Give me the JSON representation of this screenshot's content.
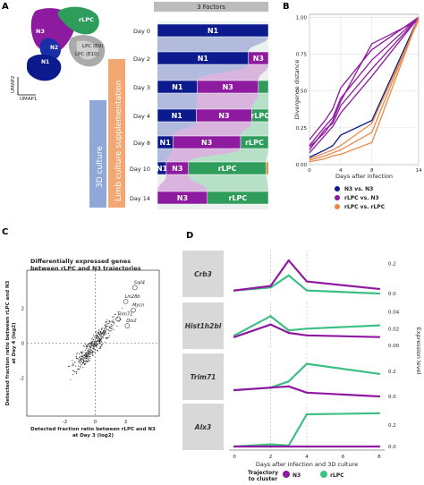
{
  "panels": {
    "a": "A",
    "b": "B",
    "c": "C",
    "d": "D"
  },
  "umap": {
    "clusters": [
      "N3",
      "rLPC",
      "N2",
      "N1",
      "LPC (E9)",
      "LPC (E10)"
    ],
    "axis_x": "UMAP1",
    "axis_y": "UMAP2"
  },
  "sankey": {
    "header": "3 Factors",
    "label_3d": "3D culture",
    "label_limb": "Limb culture supplementation",
    "days": [
      "Day 0",
      "Day 2",
      "Day 3",
      "Day 4",
      "Day 8",
      "Day 10",
      "Day 14"
    ],
    "bars": [
      [
        {
          "label": "N1",
          "frac": 1.0,
          "color": "#0b1a8c"
        }
      ],
      [
        {
          "label": "N1",
          "frac": 0.82,
          "color": "#0b1a8c"
        },
        {
          "label": "N3",
          "frac": 0.18,
          "color": "#8e1aa0"
        }
      ],
      [
        {
          "label": "N1",
          "frac": 0.36,
          "color": "#0b1a8c"
        },
        {
          "label": "N3",
          "frac": 0.55,
          "color": "#8e1aa0"
        },
        {
          "label": "",
          "frac": 0.09,
          "color": "#2e9c5a"
        }
      ],
      [
        {
          "label": "N1",
          "frac": 0.35,
          "color": "#0b1a8c"
        },
        {
          "label": "N3",
          "frac": 0.5,
          "color": "#8e1aa0"
        },
        {
          "label": "rLPC",
          "frac": 0.15,
          "color": "#2e9c5a"
        }
      ],
      [
        {
          "label": "N1",
          "frac": 0.14,
          "color": "#0b1a8c"
        },
        {
          "label": "N3",
          "frac": 0.61,
          "color": "#8e1aa0"
        },
        {
          "label": "rLPC",
          "frac": 0.25,
          "color": "#2e9c5a"
        }
      ],
      [
        {
          "label": "N1",
          "frac": 0.08,
          "color": "#0b1a8c"
        },
        {
          "label": "N3",
          "frac": 0.2,
          "color": "#8e1aa0"
        },
        {
          "label": "rLPC",
          "frac": 0.7,
          "color": "#2e9c5a"
        },
        {
          "label": "",
          "frac": 0.02,
          "color": "#e07a3a"
        }
      ],
      [
        {
          "label": "N3",
          "frac": 0.45,
          "color": "#8e1aa0"
        },
        {
          "label": "rLPC",
          "frac": 0.55,
          "color": "#2e9c5a"
        }
      ]
    ]
  },
  "chart_data": [
    {
      "type": "line",
      "panel": "B",
      "xlabel": "Days after infection",
      "ylabel": "Divergence distance",
      "xticks": [
        0,
        4,
        8,
        14
      ],
      "yticks": [
        "0.00",
        "0.25",
        "0.50",
        "0.75",
        "1.00"
      ],
      "xlim": [
        0,
        14
      ],
      "ylim": [
        0,
        1.02
      ],
      "legend_position": "bottom",
      "series": [
        {
          "name": "N3 vs. N3",
          "color": "#0b1a8c",
          "x": [
            0,
            2,
            3,
            4,
            8,
            14
          ],
          "y": [
            0.05,
            0.1,
            0.13,
            0.2,
            0.3,
            1.0
          ]
        },
        {
          "name": "rLPC vs. N3",
          "color": "#8e1aa0",
          "x": [
            0,
            2,
            3,
            4,
            8,
            14
          ],
          "y": [
            0.1,
            0.24,
            0.28,
            0.4,
            0.65,
            1.0
          ]
        },
        {
          "name": "",
          "color": "#8e1aa0",
          "x": [
            0,
            2,
            3,
            4,
            8,
            14
          ],
          "y": [
            0.13,
            0.26,
            0.32,
            0.45,
            0.71,
            1.0
          ]
        },
        {
          "name": "",
          "color": "#8e1aa0",
          "x": [
            0,
            2,
            3,
            4,
            8,
            14
          ],
          "y": [
            0.17,
            0.3,
            0.38,
            0.52,
            0.78,
            1.0
          ]
        },
        {
          "name": "",
          "color": "#8e1aa0",
          "x": [
            0,
            2,
            3,
            4,
            8,
            14
          ],
          "y": [
            0.08,
            0.2,
            0.26,
            0.35,
            0.6,
            1.0
          ]
        },
        {
          "name": "",
          "color": "#8e1aa0",
          "x": [
            0,
            2,
            3,
            4,
            8,
            14
          ],
          "y": [
            0.12,
            0.22,
            0.3,
            0.43,
            0.82,
            0.98
          ]
        },
        {
          "name": "rLPC vs. rLPC",
          "color": "#e8894a",
          "x": [
            0,
            2,
            3,
            4,
            8,
            14
          ],
          "y": [
            0.03,
            0.06,
            0.08,
            0.1,
            0.22,
            1.0
          ]
        },
        {
          "name": "",
          "color": "#e8894a",
          "x": [
            0,
            2,
            3,
            4,
            8,
            14
          ],
          "y": [
            0.02,
            0.04,
            0.06,
            0.07,
            0.15,
            1.0
          ]
        },
        {
          "name": "",
          "color": "#e8894a",
          "x": [
            0,
            2,
            3,
            4,
            8,
            14
          ],
          "y": [
            0.04,
            0.08,
            0.1,
            0.13,
            0.28,
            0.98
          ]
        }
      ]
    },
    {
      "type": "scatter",
      "panel": "C",
      "title": "Differentially expressed genes\nbetween rLPC and N3 trajectories",
      "xlabel": "Detected fraction ratio between rLPC and N3\nat Day 3 (log2)",
      "ylabel": "Detected fraction ratio between rLPC and N3\nat Day 4 (log2)",
      "xticks": [
        -2,
        0,
        2
      ],
      "yticks": [
        -2,
        0,
        2
      ],
      "xlim": [
        -4.5,
        4.2
      ],
      "ylim": [
        -4.2,
        4.2
      ],
      "labeled_points": [
        {
          "gene": "Sall4",
          "x": 2.6,
          "y": 3.2
        },
        {
          "gene": "Lin28b",
          "x": 2.0,
          "y": 2.4
        },
        {
          "gene": "Mycn",
          "x": 2.5,
          "y": 1.9
        },
        {
          "gene": "Trim71",
          "x": 1.5,
          "y": 1.4
        },
        {
          "gene": "Dlx2",
          "x": 2.1,
          "y": 1.0
        }
      ]
    },
    {
      "type": "line",
      "panel": "D",
      "xlabel": "Days after infection and 3D culture",
      "ylabel": "Expression level",
      "xticks": [
        0,
        2,
        4,
        6,
        8
      ],
      "xlim": [
        -0.3,
        8.3
      ],
      "legend_title": "Trajectory\nto cluster",
      "legend": [
        {
          "name": "N3",
          "color": "#8e1aa0"
        },
        {
          "name": "rLPC",
          "color": "#3dbf86"
        }
      ],
      "genes": [
        {
          "name": "Crb3",
          "yticks": [
            "0.0",
            "0.2"
          ],
          "ymax": 0.25,
          "N3": {
            "x": [
              0,
              2,
              3,
              4,
              8
            ],
            "y": [
              0.02,
              0.05,
              0.22,
              0.08,
              0.03
            ]
          },
          "rLPC": {
            "x": [
              0,
              2,
              3,
              4,
              8
            ],
            "y": [
              0.02,
              0.04,
              0.12,
              0.02,
              0.0
            ]
          }
        },
        {
          "name": "Hist1h2bl",
          "yticks": [
            "0.00",
            "0.02",
            "0.04"
          ],
          "ymax": 0.045,
          "N3": {
            "x": [
              0,
              2,
              3,
              4,
              8
            ],
            "y": [
              0.01,
              0.025,
              0.015,
              0.012,
              0.01
            ]
          },
          "rLPC": {
            "x": [
              0,
              2,
              3,
              4,
              8
            ],
            "y": [
              0.012,
              0.035,
              0.018,
              0.02,
              0.024
            ]
          }
        },
        {
          "name": "Trim71",
          "yticks": [
            "0.0",
            "0.2"
          ],
          "ymax": 0.3,
          "N3": {
            "x": [
              0,
              2,
              3,
              4,
              8
            ],
            "y": [
              0.05,
              0.07,
              0.08,
              0.03,
              0.0
            ]
          },
          "rLPC": {
            "x": [
              0,
              2,
              3,
              4,
              8
            ],
            "y": [
              0.05,
              0.07,
              0.12,
              0.26,
              0.18
            ]
          }
        },
        {
          "name": "Alx3",
          "yticks": [
            "0.0",
            "0.2"
          ],
          "ymax": 0.35,
          "N3": {
            "x": [
              0,
              2,
              3,
              4,
              8
            ],
            "y": [
              0.0,
              0.0,
              0.0,
              0.0,
              0.0
            ]
          },
          "rLPC": {
            "x": [
              0,
              2,
              3,
              4,
              8
            ],
            "y": [
              0.0,
              0.02,
              0.01,
              0.3,
              0.31
            ]
          }
        }
      ]
    }
  ]
}
